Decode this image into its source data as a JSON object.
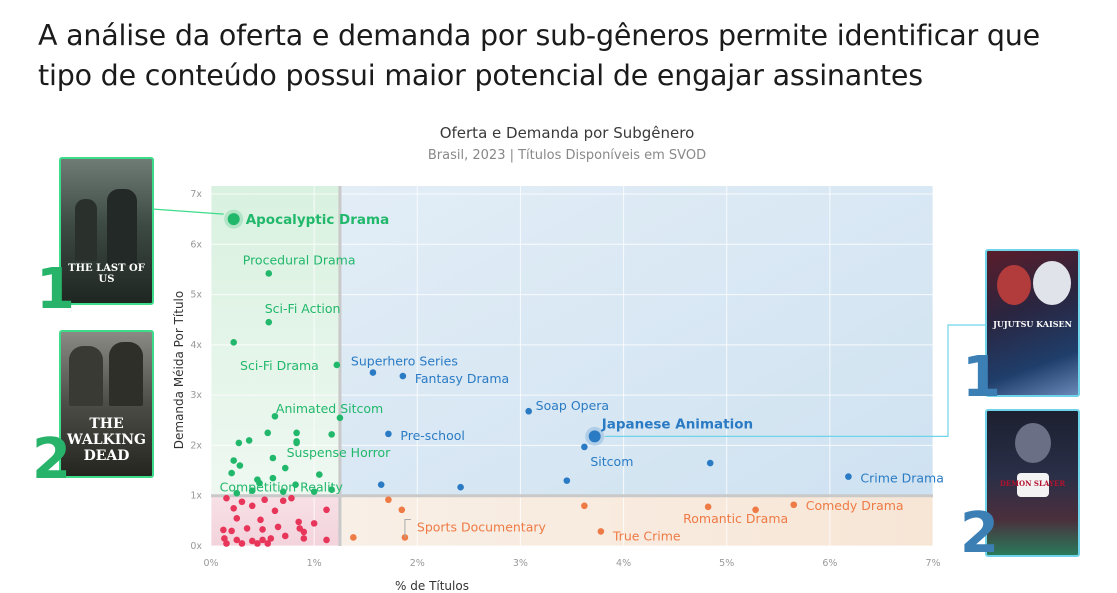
{
  "headline": "A análise da oferta e demanda por sub-gêneros permite identificar que tipo de conteúdo possui maior potencial de engajar assinantes",
  "chart_data": {
    "type": "scatter",
    "title": "Oferta e Demanda por Subgênero",
    "subtitle": "Brasil, 2023  |  Títulos Disponíveis em SVOD",
    "xlabel": "% de Títulos",
    "ylabel": "Demanda Méida Por Título",
    "xlim": [
      0,
      7
    ],
    "ylim": [
      0,
      7
    ],
    "x_ticks": [
      "0%",
      "1%",
      "2%",
      "3%",
      "4%",
      "5%",
      "6%",
      "7%"
    ],
    "y_ticks": [
      "0x",
      "1x",
      "2x",
      "3x",
      "4x",
      "5x",
      "6x",
      "7x"
    ],
    "grid": true,
    "thresholds": {
      "x": 1.25,
      "y": 1.0
    },
    "colors": {
      "green": "#21b86b",
      "blue": "#2a7bc4",
      "orange": "#ee7a45",
      "red": "#e8365a"
    },
    "labeled_points": [
      {
        "label": "Apocalyptic Drama",
        "x": 0.22,
        "y": 6.5,
        "group": "green",
        "highlight": true
      },
      {
        "label": "Procedural Drama",
        "x": 0.56,
        "y": 5.42,
        "group": "green"
      },
      {
        "label": "Sci-Fi Action",
        "x": 0.56,
        "y": 4.45,
        "group": "green"
      },
      {
        "label": "Sci-Fi Drama",
        "x": 1.22,
        "y": 3.6,
        "group": "green"
      },
      {
        "label": "Animated Sitcom",
        "x": 1.25,
        "y": 2.55,
        "group": "green"
      },
      {
        "label": "Suspense Horror",
        "x": 0.83,
        "y": 2.05,
        "group": "green"
      },
      {
        "label": "Competition Reality",
        "x": 1.17,
        "y": 1.12,
        "group": "green"
      },
      {
        "label": "Superhero Series",
        "x": 1.57,
        "y": 3.45,
        "group": "blue"
      },
      {
        "label": "Fantasy Drama",
        "x": 1.86,
        "y": 3.38,
        "group": "blue"
      },
      {
        "label": "Soap Opera",
        "x": 3.08,
        "y": 2.68,
        "group": "blue"
      },
      {
        "label": "Pre-school",
        "x": 1.72,
        "y": 2.23,
        "group": "blue"
      },
      {
        "label": "Japanese Animation",
        "x": 3.72,
        "y": 2.18,
        "group": "blue",
        "highlight": true
      },
      {
        "label": "Sitcom",
        "x": 3.62,
        "y": 1.97,
        "group": "blue"
      },
      {
        "label": "Crime Drama",
        "x": 6.18,
        "y": 1.38,
        "group": "blue"
      },
      {
        "label": "Sports Documentary",
        "x": 1.88,
        "y": 0.17,
        "group": "orange"
      },
      {
        "label": "True Crime",
        "x": 3.78,
        "y": 0.29,
        "group": "orange"
      },
      {
        "label": "Romantic Drama",
        "x": 4.82,
        "y": 0.78,
        "group": "orange"
      },
      {
        "label": "Comedy Drama",
        "x": 5.65,
        "y": 0.82,
        "group": "orange"
      }
    ],
    "other_points": [
      {
        "x": 0.22,
        "y": 4.05,
        "group": "green"
      },
      {
        "x": 0.62,
        "y": 2.58,
        "group": "green"
      },
      {
        "x": 0.27,
        "y": 2.05,
        "group": "green"
      },
      {
        "x": 0.37,
        "y": 2.1,
        "group": "green"
      },
      {
        "x": 0.55,
        "y": 2.25,
        "group": "green"
      },
      {
        "x": 0.83,
        "y": 2.25,
        "group": "green"
      },
      {
        "x": 0.83,
        "y": 2.08,
        "group": "green"
      },
      {
        "x": 1.17,
        "y": 2.22,
        "group": "green"
      },
      {
        "x": 0.22,
        "y": 1.7,
        "group": "green"
      },
      {
        "x": 0.28,
        "y": 1.6,
        "group": "green"
      },
      {
        "x": 0.2,
        "y": 1.45,
        "group": "green"
      },
      {
        "x": 0.6,
        "y": 1.75,
        "group": "green"
      },
      {
        "x": 0.72,
        "y": 1.55,
        "group": "green"
      },
      {
        "x": 1.05,
        "y": 1.42,
        "group": "green"
      },
      {
        "x": 0.45,
        "y": 1.32,
        "group": "green"
      },
      {
        "x": 0.6,
        "y": 1.35,
        "group": "green"
      },
      {
        "x": 0.47,
        "y": 1.25,
        "group": "green"
      },
      {
        "x": 0.82,
        "y": 1.22,
        "group": "green"
      },
      {
        "x": 0.4,
        "y": 1.1,
        "group": "green"
      },
      {
        "x": 0.7,
        "y": 1.08,
        "group": "green"
      },
      {
        "x": 1.0,
        "y": 1.08,
        "group": "green"
      },
      {
        "x": 0.25,
        "y": 1.05,
        "group": "green"
      },
      {
        "x": 1.65,
        "y": 1.22,
        "group": "blue"
      },
      {
        "x": 2.42,
        "y": 1.17,
        "group": "blue"
      },
      {
        "x": 3.45,
        "y": 1.3,
        "group": "blue"
      },
      {
        "x": 4.84,
        "y": 1.65,
        "group": "blue"
      },
      {
        "x": 1.72,
        "y": 0.92,
        "group": "orange"
      },
      {
        "x": 1.85,
        "y": 0.72,
        "group": "orange"
      },
      {
        "x": 1.38,
        "y": 0.17,
        "group": "orange"
      },
      {
        "x": 3.62,
        "y": 0.8,
        "group": "orange"
      },
      {
        "x": 5.28,
        "y": 0.72,
        "group": "orange"
      },
      {
        "x": 0.15,
        "y": 0.95,
        "group": "red"
      },
      {
        "x": 0.3,
        "y": 0.88,
        "group": "red"
      },
      {
        "x": 0.52,
        "y": 0.92,
        "group": "red"
      },
      {
        "x": 0.7,
        "y": 0.9,
        "group": "red"
      },
      {
        "x": 0.78,
        "y": 0.95,
        "group": "red"
      },
      {
        "x": 0.22,
        "y": 0.75,
        "group": "red"
      },
      {
        "x": 0.4,
        "y": 0.8,
        "group": "red"
      },
      {
        "x": 0.62,
        "y": 0.7,
        "group": "red"
      },
      {
        "x": 1.12,
        "y": 0.72,
        "group": "red"
      },
      {
        "x": 0.25,
        "y": 0.55,
        "group": "red"
      },
      {
        "x": 0.48,
        "y": 0.52,
        "group": "red"
      },
      {
        "x": 0.85,
        "y": 0.48,
        "group": "red"
      },
      {
        "x": 1.0,
        "y": 0.45,
        "group": "red"
      },
      {
        "x": 0.12,
        "y": 0.32,
        "group": "red"
      },
      {
        "x": 0.2,
        "y": 0.3,
        "group": "red"
      },
      {
        "x": 0.35,
        "y": 0.35,
        "group": "red"
      },
      {
        "x": 0.5,
        "y": 0.33,
        "group": "red"
      },
      {
        "x": 0.65,
        "y": 0.38,
        "group": "red"
      },
      {
        "x": 0.86,
        "y": 0.35,
        "group": "red"
      },
      {
        "x": 0.9,
        "y": 0.28,
        "group": "red"
      },
      {
        "x": 0.13,
        "y": 0.15,
        "group": "red"
      },
      {
        "x": 0.25,
        "y": 0.12,
        "group": "red"
      },
      {
        "x": 0.4,
        "y": 0.1,
        "group": "red"
      },
      {
        "x": 0.5,
        "y": 0.12,
        "group": "red"
      },
      {
        "x": 0.58,
        "y": 0.15,
        "group": "red"
      },
      {
        "x": 0.72,
        "y": 0.2,
        "group": "red"
      },
      {
        "x": 0.9,
        "y": 0.15,
        "group": "red"
      },
      {
        "x": 1.12,
        "y": 0.12,
        "group": "red"
      },
      {
        "x": 0.15,
        "y": 0.05,
        "group": "red"
      },
      {
        "x": 0.3,
        "y": 0.05,
        "group": "red"
      },
      {
        "x": 0.45,
        "y": 0.05,
        "group": "red"
      },
      {
        "x": 0.55,
        "y": 0.05,
        "group": "red"
      }
    ]
  },
  "posters_left": [
    {
      "title": "THE LAST OF US",
      "rank": "1"
    },
    {
      "title": "THE WALKING DEAD",
      "rank": "2"
    }
  ],
  "posters_right": [
    {
      "title": "JUJUTSU KAISEN",
      "rank": "1"
    },
    {
      "title": "DEMON SLAYER",
      "rank": "2"
    }
  ]
}
